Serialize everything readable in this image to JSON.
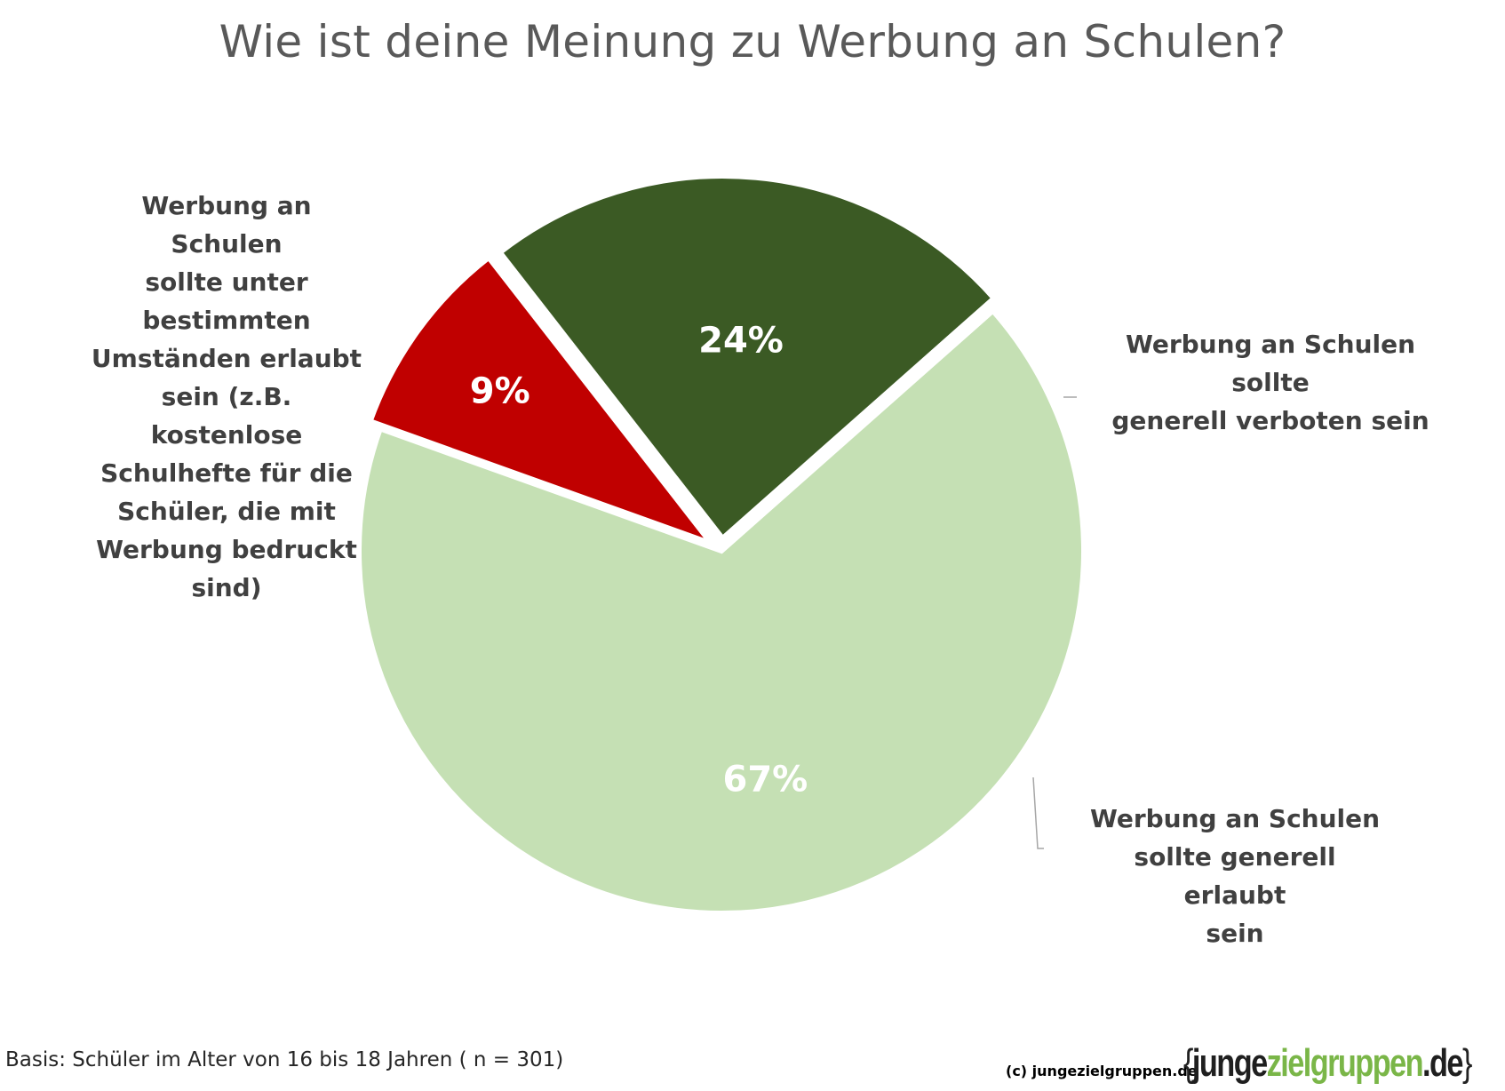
{
  "title": "Wie ist deine Meinung zu Werbung an Schulen?",
  "chart_data": {
    "type": "pie",
    "title": "Wie ist deine Meinung zu Werbung an Schulen?",
    "categories": [
      "Werbung an Schulen sollte unter bestimmten Umständen erlaubt sein (z.B. kostenlose Schulhefte für die Schüler, die mit Werbung bedruckt sind)",
      "Werbung an Schulen sollte generell verboten sein",
      "Werbung an Schulen sollte generell erlaubt sein"
    ],
    "label_lines": [
      [
        "Werbung an Schulen",
        "sollte unter",
        "bestimmten",
        "Umständen erlaubt",
        "sein (z.B. kostenlose",
        "Schulhefte für die",
        "Schüler, die mit",
        "Werbung bedruckt",
        "sind)"
      ],
      [
        "Werbung an Schulen sollte",
        "generell verboten sein"
      ],
      [
        "Werbung an Schulen",
        "sollte generell erlaubt",
        "sein"
      ]
    ],
    "values": [
      67,
      9,
      24
    ],
    "value_labels": [
      "67%",
      "9%",
      "24%"
    ],
    "colors": [
      "#c5e0b4",
      "#c00000",
      "#3b5a24"
    ],
    "legend": "none"
  },
  "footer": {
    "basis": "Basis: Schüler im Alter von 16 bis 18 Jahren ( n = 301)",
    "copyright": "(c) jungezielgruppen.de",
    "logo": {
      "open_brace": "{",
      "word1": "junge",
      "word2": "zielgruppen",
      "word3": ".de",
      "close_brace": "}"
    }
  }
}
